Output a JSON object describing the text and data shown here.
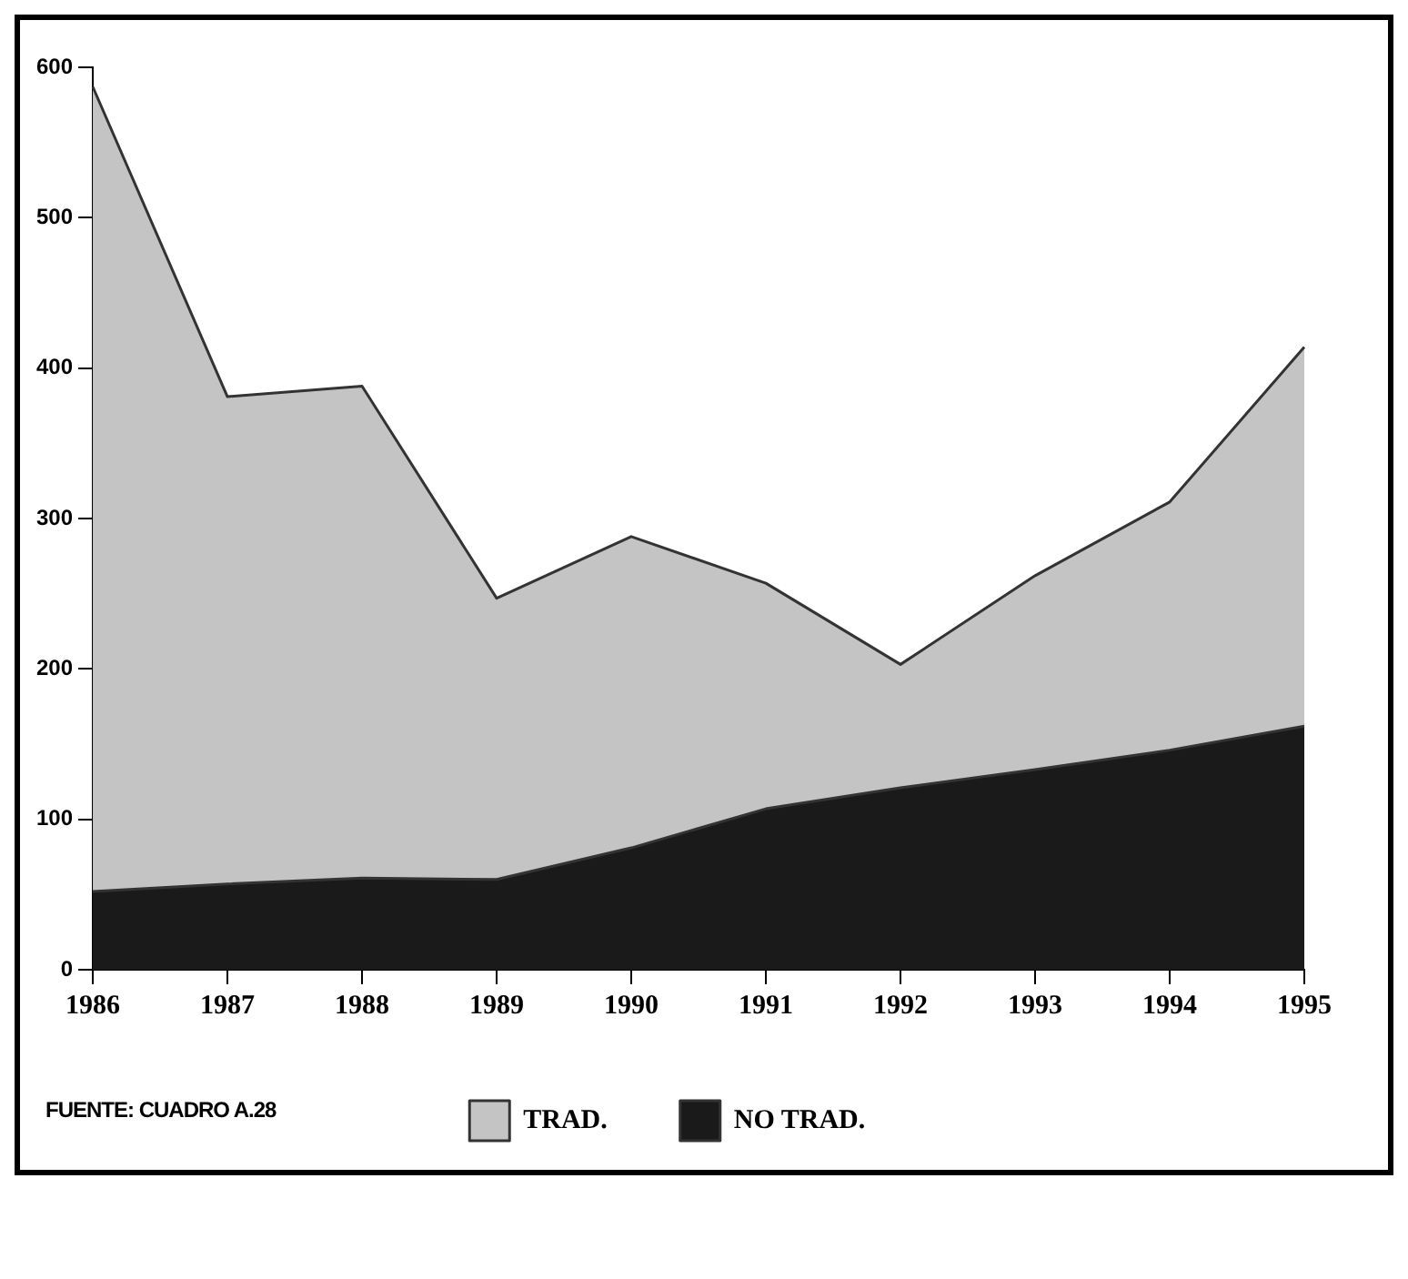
{
  "chart_data": {
    "type": "area",
    "stacked": true,
    "categories": [
      "1986",
      "1987",
      "1988",
      "1989",
      "1990",
      "1991",
      "1992",
      "1993",
      "1994",
      "1995"
    ],
    "series": [
      {
        "name": "NO TRAD.",
        "color": "#1a1a1a",
        "values": [
          52,
          57,
          61,
          60,
          81,
          107,
          121,
          133,
          146,
          162
        ]
      },
      {
        "name": "TRAD.",
        "color": "#c4c4c4",
        "values": [
          535,
          324,
          327,
          187,
          207,
          150,
          82,
          129,
          165,
          252
        ]
      }
    ],
    "ylim": [
      0,
      600
    ],
    "yticks": [
      0,
      100,
      200,
      300,
      400,
      500,
      600
    ],
    "grid": false,
    "legend": "bottom",
    "marker": "none",
    "annotations": [
      "FUENTE: CUADRO A.28"
    ]
  }
}
